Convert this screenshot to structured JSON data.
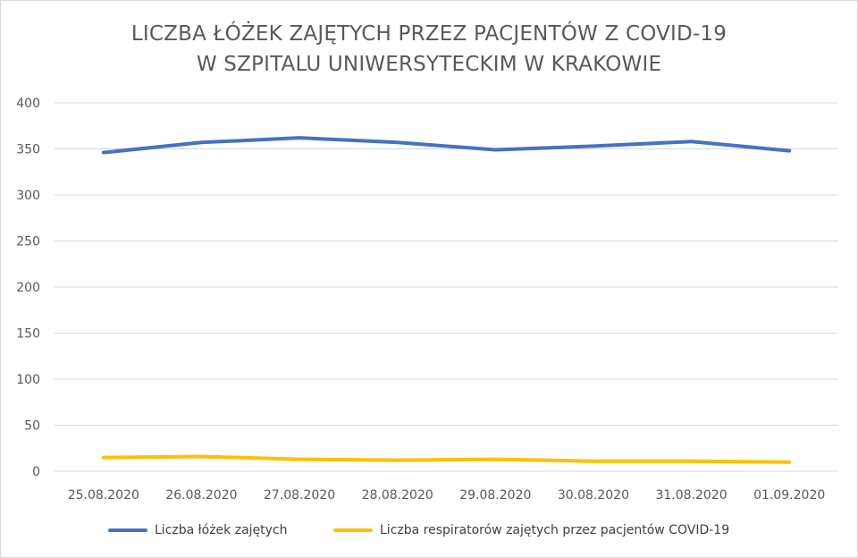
{
  "colors": {
    "series_beds": "#4472c4",
    "series_resp": "#ffc000",
    "grid": "#d9d9d9",
    "text": "#595959"
  },
  "chart_data": {
    "type": "line",
    "title_lines": [
      "LICZBA ŁÓŻEK ZAJĘTYCH PRZEZ PACJENTÓW Z COVID-19",
      "W SZPITALU UNIWERSYTECKIM W KRAKOWIE"
    ],
    "categories": [
      "25.08.2020",
      "26.08.2020",
      "27.08.2020",
      "28.08.2020",
      "29.08.2020",
      "30.08.2020",
      "31.08.2020",
      "01.09.2020"
    ],
    "series": [
      {
        "name": "Liczba łóżek zajętych",
        "values": [
          346,
          357,
          362,
          357,
          349,
          353,
          358,
          348
        ]
      },
      {
        "name": "Liczba respiratorów zajętych przez pacjentów COVID-19",
        "values": [
          15,
          16,
          13,
          12,
          13,
          11,
          11,
          10
        ]
      }
    ],
    "ylim": [
      0,
      400
    ],
    "yticks": [
      0,
      50,
      100,
      150,
      200,
      250,
      300,
      350,
      400
    ],
    "grid": true,
    "legend_position": "bottom"
  }
}
